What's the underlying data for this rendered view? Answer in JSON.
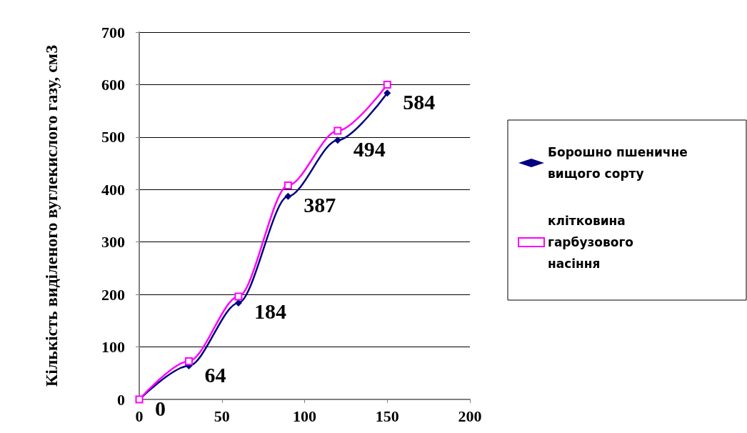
{
  "chart_data": {
    "type": "line",
    "ylabel": "Кількість виділеного вуглекислого газу, см3",
    "x": [
      0,
      30,
      60,
      90,
      120,
      150
    ],
    "series": [
      {
        "name": "Борошно пшеничне вищого сорту",
        "color": "#000080",
        "marker": "diamond",
        "values": [
          0,
          64,
          184,
          387,
          494,
          584
        ],
        "value_labels": [
          "0",
          "64",
          "184",
          "387",
          "494",
          "584"
        ]
      },
      {
        "name": "клітковина гарбузового насіння",
        "color": "#ff00ff",
        "marker": "square",
        "values": [
          0,
          73,
          196,
          408,
          512,
          600
        ]
      }
    ],
    "xlim": [
      0,
      200
    ],
    "xticks": [
      0,
      50,
      100,
      150,
      200
    ],
    "ylim": [
      0,
      700
    ],
    "yticks": [
      0,
      100,
      200,
      300,
      400,
      500,
      600,
      700
    ],
    "grid": "y",
    "legend": "right"
  }
}
